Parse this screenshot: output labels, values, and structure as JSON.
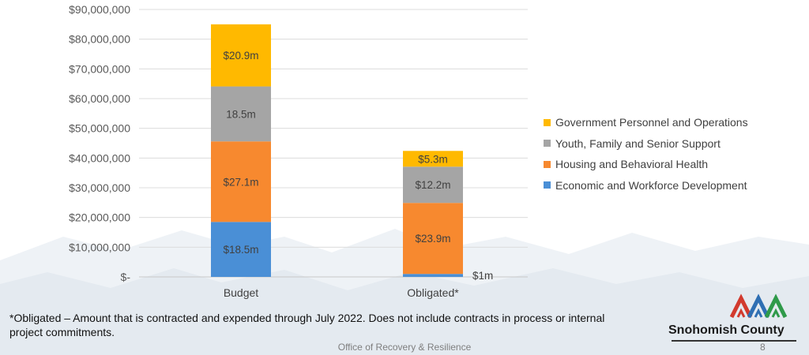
{
  "chart_data": {
    "type": "bar",
    "stacked": true,
    "categories": [
      "Budget",
      "Obligated*"
    ],
    "ylim": [
      0,
      90000000
    ],
    "y_ticks": [
      "$-",
      "$10,000,000",
      "$20,000,000",
      "$30,000,000",
      "$40,000,000",
      "$50,000,000",
      "$60,000,000",
      "$70,000,000",
      "$80,000,000",
      "$90,000,000"
    ],
    "grid": true,
    "legend_position": "right",
    "series": [
      {
        "name": "Economic and Workforce Development",
        "color": "#4a8fd6",
        "values": [
          18500000,
          1000000
        ],
        "labels": [
          "$18.5m",
          "$1m"
        ]
      },
      {
        "name": "Housing and Behavioral Health",
        "color": "#f7892f",
        "values": [
          27100000,
          23900000
        ],
        "labels": [
          "$27.1m",
          "$23.9m"
        ]
      },
      {
        "name": "Youth, Family and Senior Support",
        "color": "#a5a5a5",
        "values": [
          18500000,
          12200000
        ],
        "labels": [
          "18.5m",
          "$12.2m"
        ]
      },
      {
        "name": "Government Personnel and Operations",
        "color": "#ffb900",
        "values": [
          20900000,
          5300000
        ],
        "labels": [
          "$20.9m",
          "$5.3m"
        ]
      }
    ]
  },
  "legend_items": [
    {
      "label": "Government Personnel and Operations",
      "color": "#ffb900"
    },
    {
      "label": "Youth, Family and Senior Support",
      "color": "#a5a5a5"
    },
    {
      "label": "Housing and Behavioral Health",
      "color": "#f7892f"
    },
    {
      "label": "Economic and Workforce Development",
      "color": "#4a8fd6"
    }
  ],
  "footnote": "*Obligated – Amount that is contracted and expended through July 2022. Does not include contracts in process or internal project commitments.",
  "footer": "Office of Recovery & Resilience",
  "page_number": "8",
  "logo": {
    "name": "Snohomish County"
  }
}
